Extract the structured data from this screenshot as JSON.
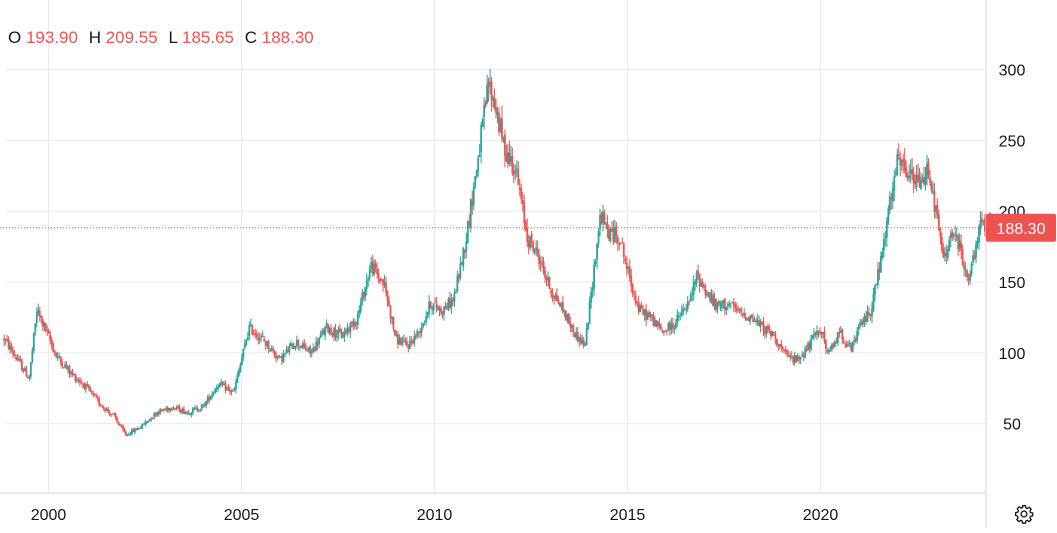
{
  "legend": {
    "open_label": "O",
    "open": "193.90",
    "high_label": "H",
    "high": "209.55",
    "low_label": "L",
    "low": "185.65",
    "close_label": "C",
    "close": "188.30"
  },
  "settings_icon": "gear-icon",
  "colors": {
    "up": "#26a69a",
    "down": "#ef5350",
    "grid": "#ebebeb",
    "text": "#131722",
    "price_line": "#ef5350"
  },
  "chart_data": {
    "type": "candlestick",
    "title": "",
    "xlabel": "",
    "ylabel": "",
    "y_ticks": [
      50,
      100,
      150,
      200,
      250,
      300
    ],
    "x_ticks": [
      "2000",
      "2005",
      "2010",
      "2015",
      "2020"
    ],
    "ylim": [
      0,
      335
    ],
    "x_range": [
      1998.85,
      2024.5
    ],
    "grid": true,
    "last_price_label": "188.30",
    "last_price": 188.3,
    "anchors": [
      [
        1998.85,
        110
      ],
      [
        1999.2,
        95
      ],
      [
        1999.5,
        82
      ],
      [
        1999.7,
        130
      ],
      [
        1999.9,
        118
      ],
      [
        2000.2,
        98
      ],
      [
        2000.6,
        85
      ],
      [
        2000.9,
        78
      ],
      [
        2001.3,
        65
      ],
      [
        2001.7,
        55
      ],
      [
        2002.0,
        42
      ],
      [
        2002.4,
        48
      ],
      [
        2002.8,
        58
      ],
      [
        2003.2,
        62
      ],
      [
        2003.6,
        58
      ],
      [
        2004.0,
        62
      ],
      [
        2004.4,
        78
      ],
      [
        2004.8,
        72
      ],
      [
        2005.2,
        118
      ],
      [
        2005.6,
        108
      ],
      [
        2006.0,
        95
      ],
      [
        2006.4,
        108
      ],
      [
        2006.8,
        100
      ],
      [
        2007.2,
        118
      ],
      [
        2007.6,
        112
      ],
      [
        2008.0,
        125
      ],
      [
        2008.35,
        162
      ],
      [
        2008.7,
        148
      ],
      [
        2009.0,
        110
      ],
      [
        2009.3,
        105
      ],
      [
        2009.6,
        115
      ],
      [
        2009.9,
        135
      ],
      [
        2010.2,
        130
      ],
      [
        2010.5,
        138
      ],
      [
        2010.8,
        178
      ],
      [
        2011.1,
        232
      ],
      [
        2011.4,
        290
      ],
      [
        2011.6,
        272
      ],
      [
        2011.8,
        245
      ],
      [
        2012.1,
        230
      ],
      [
        2012.4,
        182
      ],
      [
        2012.7,
        168
      ],
      [
        2013.0,
        145
      ],
      [
        2013.3,
        132
      ],
      [
        2013.6,
        115
      ],
      [
        2013.9,
        105
      ],
      [
        2014.3,
        198
      ],
      [
        2014.5,
        185
      ],
      [
        2014.8,
        182
      ],
      [
        2015.0,
        158
      ],
      [
        2015.3,
        130
      ],
      [
        2015.6,
        125
      ],
      [
        2015.9,
        115
      ],
      [
        2016.2,
        120
      ],
      [
        2016.6,
        135
      ],
      [
        2016.8,
        155
      ],
      [
        2017.0,
        145
      ],
      [
        2017.3,
        132
      ],
      [
        2017.6,
        135
      ],
      [
        2017.9,
        128
      ],
      [
        2018.2,
        125
      ],
      [
        2018.5,
        118
      ],
      [
        2018.8,
        112
      ],
      [
        2019.1,
        98
      ],
      [
        2019.4,
        95
      ],
      [
        2019.7,
        105
      ],
      [
        2020.0,
        118
      ],
      [
        2020.2,
        98
      ],
      [
        2020.5,
        115
      ],
      [
        2020.8,
        102
      ],
      [
        2021.0,
        118
      ],
      [
        2021.3,
        130
      ],
      [
        2021.6,
        170
      ],
      [
        2021.8,
        205
      ],
      [
        2022.0,
        235
      ],
      [
        2022.3,
        225
      ],
      [
        2022.6,
        218
      ],
      [
        2022.8,
        232
      ],
      [
        2022.95,
        205
      ],
      [
        2023.2,
        165
      ],
      [
        2023.4,
        185
      ],
      [
        2023.6,
        175
      ],
      [
        2023.8,
        152
      ],
      [
        2024.0,
        168
      ],
      [
        2024.15,
        192
      ],
      [
        2024.3,
        190
      ],
      [
        2024.45,
        188.3
      ]
    ]
  }
}
